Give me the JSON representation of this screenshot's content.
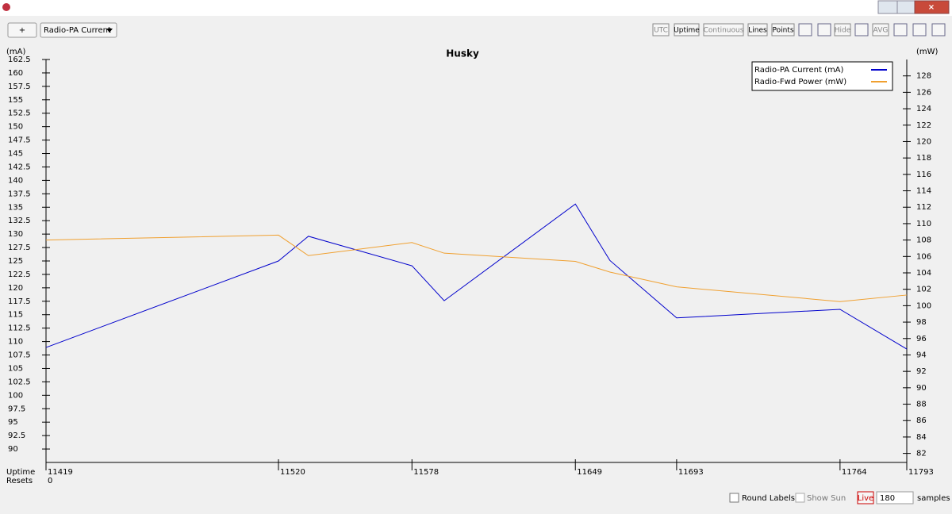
{
  "toolbar": {
    "add": "+",
    "selector": "Radio-PA Current",
    "buttons": [
      "UTC",
      "Uptime",
      "Continuous",
      "Lines",
      "Points",
      "Hide",
      "AVG"
    ]
  },
  "chart_data": {
    "type": "line",
    "title": "Husky",
    "y_label": "(mA)",
    "y2_label": "(mW)",
    "x_label": "Uptime",
    "resets_label": "Resets",
    "resets_value": 0,
    "x": [
      11419,
      11520,
      11533,
      11578,
      11592,
      11649,
      11664,
      11693,
      11764,
      11793
    ],
    "xlim": [
      11419,
      11793
    ],
    "xticks": [
      11419,
      11520,
      11578,
      11649,
      11693,
      11764,
      11793
    ],
    "ylim": [
      87.5,
      162.5
    ],
    "yticks": [
      90,
      92.5,
      95,
      97.5,
      100,
      102.5,
      105,
      107.5,
      110,
      112.5,
      115,
      117.5,
      120,
      122.5,
      125,
      127.5,
      130,
      132.5,
      135,
      137.5,
      140,
      142.5,
      145,
      147.5,
      150,
      152.5,
      155,
      157.5,
      160,
      162.5
    ],
    "y2lim": [
      80.9,
      130
    ],
    "y2ticks": [
      82,
      84,
      86,
      88,
      90,
      92,
      94,
      96,
      98,
      100,
      102,
      104,
      106,
      108,
      110,
      112,
      114,
      116,
      118,
      120,
      122,
      124,
      126,
      128
    ],
    "legend": "upper right",
    "series": [
      {
        "name": "Radio-PA Current (mA)",
        "color": "#0000cc",
        "values": [
          108.9,
          125.0,
          129.6,
          124.1,
          117.6,
          135.6,
          125.1,
          114.4,
          116.0,
          108.6
        ]
      },
      {
        "name": "Radio-Fwd Power (mW)",
        "color": "#f0a030",
        "axis": "y2",
        "values": [
          108.0,
          108.6,
          106.1,
          107.7,
          106.4,
          105.4,
          104.1,
          102.3,
          100.5,
          101.3
        ]
      }
    ]
  },
  "footer": {
    "round_labels": "Round Labels",
    "show_sun": "Show Sun",
    "live": "Live",
    "samples_value": 180,
    "samples": "samples"
  }
}
